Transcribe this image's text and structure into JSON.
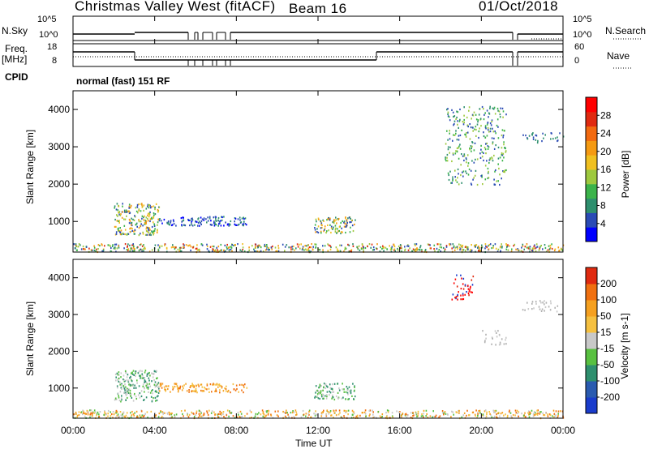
{
  "header": {
    "station": "Christmas Valley West (fitACF)",
    "beam": "Beam 16",
    "date": "01/Oct/2018"
  },
  "left_labels": {
    "nsky": "N.Sky",
    "nsky_top": "10^5",
    "nsky_bot": "10^0",
    "freq": "Freq.",
    "freq_unit": "[MHz]",
    "freq_top": "18",
    "freq_bot": "8",
    "cpid": "CPID"
  },
  "right_labels": {
    "nsearch": "N.Search",
    "nsearch_top": "10^5",
    "nsearch_bot": "10^0",
    "nave": "Nave",
    "nave_top": "60",
    "nave_bot": "0"
  },
  "cpid_text": "normal (fast) 151 RF",
  "chart_data": [
    {
      "type": "heatmap",
      "name": "power",
      "ylabel": "Slant Range [km]",
      "yticks": [
        "1000",
        "2000",
        "3000",
        "4000"
      ],
      "ylim": [
        180,
        4500
      ],
      "xlim": [
        0,
        24
      ],
      "colorbar": {
        "label": "Power [dB]",
        "ticks": [
          "4",
          "8",
          "12",
          "16",
          "20",
          "24",
          "28"
        ],
        "colors": [
          "#0000ff",
          "#2a4bb5",
          "#2e8f6e",
          "#3bb34a",
          "#9ec93e",
          "#f0c020",
          "#f59a12",
          "#f26a10",
          "#e02a10",
          "#ff0000"
        ]
      },
      "regions": [
        {
          "t0": 0.0,
          "t1": 24.0,
          "r0": 200,
          "r1": 420,
          "level": "mixed-low"
        },
        {
          "t0": 2.0,
          "t1": 4.2,
          "r0": 650,
          "r1": 1500,
          "level": "mixed-mid"
        },
        {
          "t0": 4.2,
          "t1": 8.5,
          "r0": 900,
          "r1": 1150,
          "level": "low-blue"
        },
        {
          "t0": 11.8,
          "t1": 13.8,
          "r0": 700,
          "r1": 1150,
          "level": "mixed-mid"
        },
        {
          "t0": 18.2,
          "t1": 21.2,
          "r0": 2000,
          "r1": 4100,
          "level": "sparse-green"
        },
        {
          "t0": 22.0,
          "t1": 24.0,
          "r0": 3100,
          "r1": 3400,
          "level": "sparse-blue"
        }
      ]
    },
    {
      "type": "heatmap",
      "name": "velocity",
      "ylabel": "Slant Range [km]",
      "yticks": [
        "1000",
        "2000",
        "3000",
        "4000"
      ],
      "ylim": [
        180,
        4500
      ],
      "xlim": [
        0,
        24
      ],
      "xlabel": "Time UT",
      "xticks": [
        "00:00",
        "04:00",
        "08:00",
        "12:00",
        "16:00",
        "20:00",
        "00:00"
      ],
      "colorbar": {
        "label": "Velocity [m s-1]",
        "ticks": [
          "200",
          "100",
          "50",
          "15",
          "-15",
          "-50",
          "-100",
          "-200"
        ],
        "colors": [
          "#1a3ccc",
          "#2a5bb0",
          "#2e8f6e",
          "#58c040",
          "#c8c8c8",
          "#f5c040",
          "#f5a020",
          "#f07010",
          "#e02a10"
        ]
      },
      "regions": [
        {
          "t0": 0.0,
          "t1": 24.0,
          "r0": 200,
          "r1": 420,
          "level": "ground-orange-green"
        },
        {
          "t0": 2.0,
          "t1": 4.2,
          "r0": 650,
          "r1": 1500,
          "level": "grey-green"
        },
        {
          "t0": 4.2,
          "t1": 8.5,
          "r0": 900,
          "r1": 1150,
          "level": "orange"
        },
        {
          "t0": 11.8,
          "t1": 13.8,
          "r0": 700,
          "r1": 1150,
          "level": "green"
        },
        {
          "t0": 18.5,
          "t1": 19.8,
          "r0": 3400,
          "r1": 4100,
          "level": "red"
        },
        {
          "t0": 20.0,
          "t1": 21.2,
          "r0": 2200,
          "r1": 2600,
          "level": "grey"
        },
        {
          "t0": 22.0,
          "t1": 24.0,
          "r0": 3100,
          "r1": 3400,
          "level": "grey"
        }
      ]
    }
  ]
}
